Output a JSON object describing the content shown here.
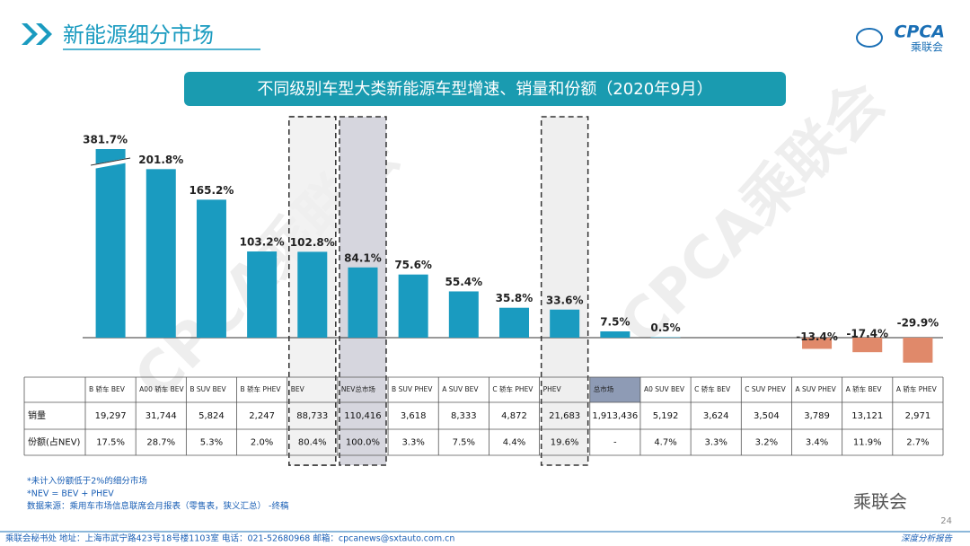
{
  "header": {
    "title": "新能源细分市场",
    "logo": "CPCA",
    "logo_sub": "乘联会",
    "watermark": "CPCA乘联会"
  },
  "chart_data": {
    "type": "bar",
    "title": "不同级别车型大类新能源车型增速、销量和份额（2020年9月）",
    "categories": [
      "B 轿车 BEV",
      "A00 轿车 BEV",
      "B SUV BEV",
      "B 轿车 PHEV",
      "BEV",
      "NEV总市场",
      "B SUV PHEV",
      "A SUV BEV",
      "C 轿车 PHEV",
      "PHEV",
      "总市场",
      "A0 SUV BEV",
      "C 轿车 BEV",
      "C SUV PHEV",
      "A SUV PHEV",
      "A 轿车 BEV",
      "A 轿车 PHEV"
    ],
    "values": [
      381.7,
      201.8,
      165.2,
      103.2,
      102.8,
      84.1,
      75.6,
      55.4,
      35.8,
      33.6,
      7.5,
      0.5,
      null,
      null,
      -13.4,
      -17.4,
      -29.9
    ],
    "value_labels": [
      "381.7%",
      "201.8%",
      "165.2%",
      "103.2%",
      "102.8%",
      "84.1%",
      "75.6%",
      "55.4%",
      "35.8%",
      "33.6%",
      "7.5%",
      "0.5%",
      null,
      null,
      "-13.4%",
      "-17.4%",
      "-29.9%"
    ],
    "color": "#1a9bc0",
    "negative_color": "#e0896a",
    "table_rows": [
      {
        "label": "销量",
        "cells": [
          "19,297",
          "31,744",
          "5,824",
          "2,247",
          "88,733",
          "110,416",
          "3,618",
          "8,333",
          "4,872",
          "21,683",
          "1,913,436",
          "5,192",
          "3,624",
          "3,504",
          "3,789",
          "13,121",
          "2,971"
        ]
      },
      {
        "label": "份额(占NEV)",
        "cells": [
          "17.5%",
          "28.7%",
          "5.3%",
          "2.0%",
          "80.4%",
          "100.0%",
          "3.3%",
          "7.5%",
          "4.4%",
          "19.6%",
          "-",
          "4.7%",
          "3.3%",
          "3.2%",
          "3.4%",
          "11.9%",
          "2.7%"
        ]
      }
    ]
  },
  "notes": [
    "*未计入份额低于2%的细分市场",
    "*NEV = BEV + PHEV",
    "数据来源：乘用车市场信息联席会月报表（零售表，狭义汇总）   -终稿"
  ],
  "footer": {
    "contact": "乘联会秘书处   地址：上海市武宁路423号18号楼1103室   电话：021-52680968   邮箱：cpcanews@sxtauto.com.cn",
    "report": "深度分析报告",
    "page": "24",
    "wechat": "乘联会"
  }
}
